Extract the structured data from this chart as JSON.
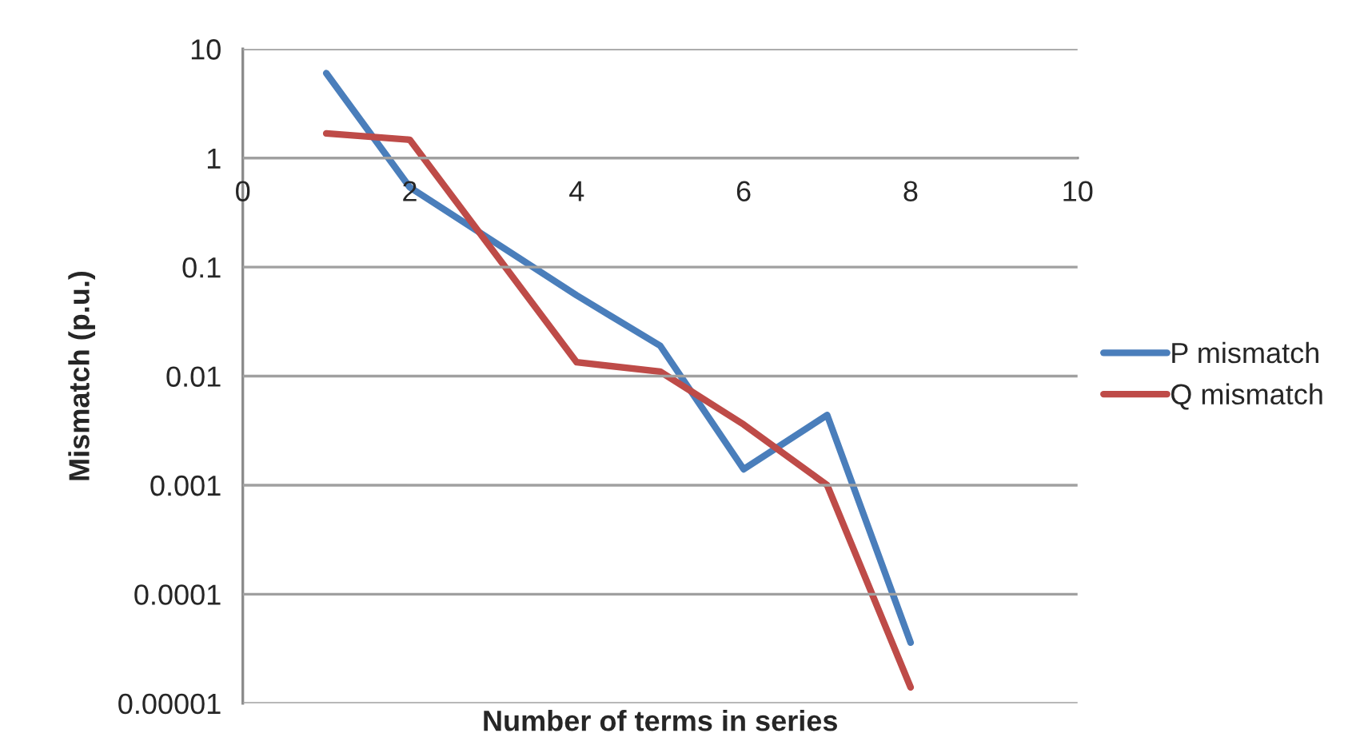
{
  "chart_data": {
    "type": "line",
    "xlabel": "Number of terms in series",
    "ylabel": "Mismatch (p.u.)",
    "x": [
      1,
      2,
      4,
      5,
      6,
      7,
      8
    ],
    "series": [
      {
        "name": "P mismatch",
        "color": "#4a7ebb",
        "values": [
          6.0,
          0.54,
          0.055,
          0.019,
          0.0014,
          0.0044,
          3.6e-05
        ]
      },
      {
        "name": "Q mismatch",
        "color": "#be4b48",
        "values": [
          1.68,
          1.47,
          0.0134,
          0.011,
          0.0036,
          0.001,
          1.4e-05
        ]
      }
    ],
    "log": "y",
    "xlim": [
      0,
      10
    ],
    "xticks": [
      0,
      2,
      4,
      6,
      8,
      10
    ],
    "ylim": [
      1e-05,
      10
    ],
    "yticks": [
      10,
      1,
      0.1,
      0.01,
      0.001,
      0.0001,
      {
        "value": 1e-05,
        "label": "0.00001"
      }
    ],
    "grid": "y",
    "legend": "right",
    "marker": "none",
    "line_style": "solid"
  }
}
